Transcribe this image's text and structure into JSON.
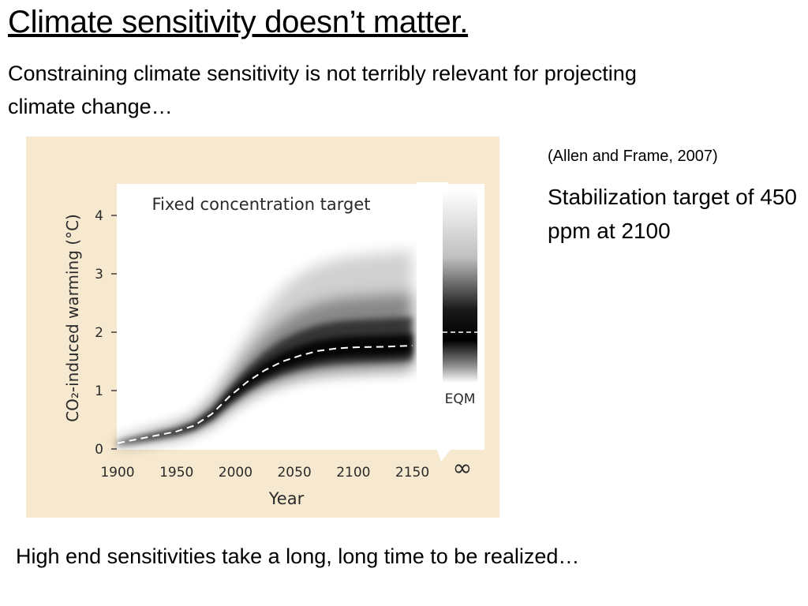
{
  "slide": {
    "title": "Climate sensitivity doesn’t matter.",
    "subtitle": "Constraining climate sensitivity is not terribly relevant for projecting climate change…",
    "citation": "(Allen and Frame, 2007)",
    "note": "Stabilization target of 450 ppm at 2100",
    "footer": "High end sensitivities take a long, long time to be realized…"
  },
  "colors": {
    "figure_background": "#f7e9cf",
    "plot_background": "#ffffff",
    "band": "#000000",
    "median_line": "#ffffff"
  },
  "chart_data": {
    "type": "area",
    "title": "Fixed concentration target",
    "xlabel": "Year",
    "ylabel": "CO₂-induced warming (°C)",
    "xlim": [
      1900,
      2155
    ],
    "ylim": [
      0,
      4.5
    ],
    "x_ticks": [
      "1900",
      "1950",
      "2000",
      "2050",
      "2100",
      "2150",
      "∞"
    ],
    "y_ticks": [
      "0",
      "1",
      "2",
      "3",
      "4"
    ],
    "x_tick_values": [
      1900,
      1950,
      2000,
      2050,
      2100,
      2150
    ],
    "y_tick_values": [
      0,
      1,
      2,
      3,
      4
    ],
    "grid": false,
    "series": [
      {
        "style": "dashed",
        "x": [
          1900,
          1925,
          1950,
          1965,
          1980,
          1995,
          2010,
          2025,
          2040,
          2055,
          2070,
          2085,
          2100,
          2125,
          2150
        ],
        "y": [
          0.1,
          0.2,
          0.3,
          0.4,
          0.6,
          0.9,
          1.15,
          1.35,
          1.5,
          1.6,
          1.68,
          1.72,
          1.74,
          1.75,
          1.77
        ]
      }
    ],
    "uncertainty_band": {
      "note": "probability shading around median",
      "x": [
        1900,
        1925,
        1950,
        1965,
        1980,
        1995,
        2010,
        2025,
        2040,
        2055,
        2070,
        2085,
        2100,
        2125,
        2150
      ],
      "lower": [
        0.05,
        0.12,
        0.2,
        0.28,
        0.42,
        0.65,
        0.85,
        1.0,
        1.1,
        1.18,
        1.23,
        1.26,
        1.28,
        1.3,
        1.32
      ],
      "upper": [
        0.15,
        0.3,
        0.45,
        0.6,
        0.9,
        1.4,
        1.95,
        2.4,
        2.75,
        3.0,
        3.15,
        3.25,
        3.3,
        3.35,
        3.4
      ]
    },
    "equilibrium": {
      "label": "EQM",
      "x_label": "∞",
      "median": 2.0
    }
  }
}
